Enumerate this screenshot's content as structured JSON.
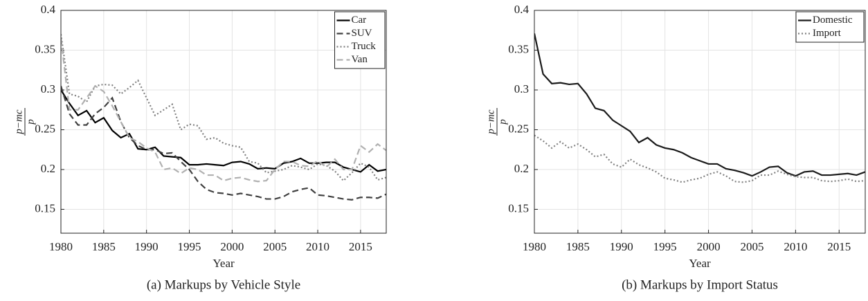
{
  "chart_data": [
    {
      "type": "line",
      "caption": "(a) Markups by Vehicle Style",
      "xlabel": "Year",
      "ylabel": {
        "numerator": "p−mc",
        "denominator": "p"
      },
      "x": [
        1980,
        1981,
        1982,
        1983,
        1984,
        1985,
        1986,
        1987,
        1988,
        1989,
        1990,
        1991,
        1992,
        1993,
        1994,
        1995,
        1996,
        1997,
        1998,
        1999,
        2000,
        2001,
        2002,
        2003,
        2004,
        2005,
        2006,
        2007,
        2008,
        2009,
        2010,
        2011,
        2012,
        2013,
        2014,
        2015,
        2016,
        2017,
        2018
      ],
      "series": [
        {
          "name": "Car",
          "color": "#000000",
          "dash": "solid",
          "values": [
            0.3,
            0.283,
            0.268,
            0.274,
            0.259,
            0.265,
            0.249,
            0.24,
            0.245,
            0.226,
            0.225,
            0.228,
            0.217,
            0.216,
            0.215,
            0.206,
            0.206,
            0.207,
            0.206,
            0.205,
            0.209,
            0.21,
            0.207,
            0.201,
            0.202,
            0.201,
            0.208,
            0.21,
            0.214,
            0.208,
            0.208,
            0.209,
            0.209,
            0.203,
            0.2,
            0.197,
            0.206,
            0.198,
            0.2
          ]
        },
        {
          "name": "SUV",
          "color": "#404040",
          "dash": "dashed",
          "values": [
            0.305,
            0.27,
            0.256,
            0.256,
            0.27,
            0.278,
            0.29,
            0.26,
            0.24,
            0.23,
            0.225,
            0.225,
            0.22,
            0.221,
            0.21,
            0.2,
            0.185,
            0.175,
            0.171,
            0.17,
            0.168,
            0.17,
            0.168,
            0.166,
            0.163,
            0.163,
            0.166,
            0.172,
            0.175,
            0.177,
            0.168,
            0.167,
            0.165,
            0.163,
            0.162,
            0.165,
            0.165,
            0.164,
            0.169
          ]
        },
        {
          "name": "Truck",
          "color": "#808080",
          "dash": "dotted",
          "values": [
            0.37,
            0.295,
            0.292,
            0.285,
            0.305,
            0.307,
            0.306,
            0.295,
            0.303,
            0.312,
            0.29,
            0.268,
            0.275,
            0.282,
            0.25,
            0.257,
            0.255,
            0.238,
            0.24,
            0.233,
            0.23,
            0.228,
            0.21,
            0.208,
            0.196,
            0.198,
            0.2,
            0.205,
            0.203,
            0.2,
            0.207,
            0.205,
            0.198,
            0.186,
            0.196,
            0.208,
            0.203,
            0.187,
            0.19
          ]
        },
        {
          "name": "Van",
          "color": "#b0b0b0",
          "dash": "dashed",
          "values": [
            0.365,
            0.275,
            0.275,
            0.29,
            0.305,
            0.298,
            0.28,
            0.26,
            0.24,
            0.235,
            0.227,
            0.222,
            0.2,
            0.202,
            0.195,
            0.202,
            0.2,
            0.193,
            0.193,
            0.186,
            0.189,
            0.19,
            0.187,
            0.185,
            0.186,
            0.2,
            0.21,
            0.21,
            0.205,
            0.204,
            0.211,
            0.203,
            0.213,
            0.2,
            0.2,
            0.23,
            0.222,
            0.232,
            0.224
          ]
        }
      ],
      "xlim": [
        1980,
        2018
      ],
      "ylim": [
        0.12,
        0.4
      ],
      "xticks": [
        1980,
        1985,
        1990,
        1995,
        2000,
        2005,
        2010,
        2015
      ],
      "yticks": [
        0.15,
        0.2,
        0.25,
        0.3,
        0.35,
        0.4
      ],
      "grid": true,
      "legend": "upper right"
    },
    {
      "type": "line",
      "caption": "(b) Markups by Import Status",
      "xlabel": "Year",
      "ylabel": {
        "numerator": "p−mc",
        "denominator": "p"
      },
      "x": [
        1980,
        1981,
        1982,
        1983,
        1984,
        1985,
        1986,
        1987,
        1988,
        1989,
        1990,
        1991,
        1992,
        1993,
        1994,
        1995,
        1996,
        1997,
        1998,
        1999,
        2000,
        2001,
        2002,
        2003,
        2004,
        2005,
        2006,
        2007,
        2008,
        2009,
        2010,
        2011,
        2012,
        2013,
        2014,
        2015,
        2016,
        2017,
        2018
      ],
      "series": [
        {
          "name": "Domestic",
          "color": "#1a1a1a",
          "dash": "solid",
          "values": [
            0.371,
            0.32,
            0.308,
            0.309,
            0.307,
            0.308,
            0.295,
            0.277,
            0.274,
            0.262,
            0.255,
            0.248,
            0.234,
            0.24,
            0.231,
            0.227,
            0.225,
            0.221,
            0.215,
            0.211,
            0.207,
            0.207,
            0.201,
            0.199,
            0.196,
            0.192,
            0.197,
            0.203,
            0.204,
            0.196,
            0.192,
            0.197,
            0.198,
            0.193,
            0.193,
            0.194,
            0.195,
            0.193,
            0.197
          ]
        },
        {
          "name": "Import",
          "color": "#808080",
          "dash": "dotted",
          "values": [
            0.243,
            0.236,
            0.227,
            0.235,
            0.227,
            0.232,
            0.225,
            0.216,
            0.219,
            0.207,
            0.203,
            0.213,
            0.206,
            0.202,
            0.197,
            0.189,
            0.187,
            0.184,
            0.187,
            0.189,
            0.194,
            0.197,
            0.192,
            0.185,
            0.184,
            0.186,
            0.193,
            0.193,
            0.198,
            0.194,
            0.191,
            0.19,
            0.19,
            0.186,
            0.185,
            0.186,
            0.188,
            0.185,
            0.186
          ]
        }
      ],
      "xlim": [
        1980,
        2018
      ],
      "ylim": [
        0.12,
        0.4
      ],
      "xticks": [
        1980,
        1985,
        1990,
        1995,
        2000,
        2005,
        2010,
        2015
      ],
      "yticks": [
        0.15,
        0.2,
        0.25,
        0.3,
        0.35,
        0.4
      ],
      "grid": true,
      "legend": "upper right"
    }
  ]
}
